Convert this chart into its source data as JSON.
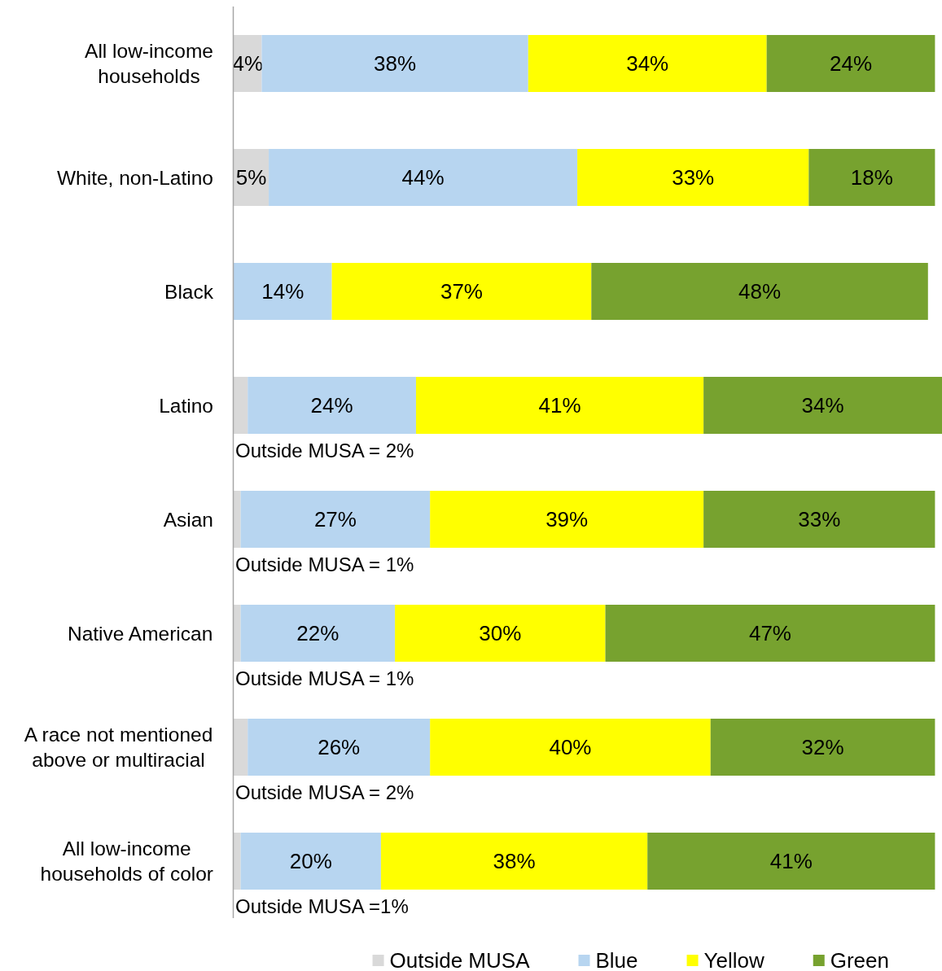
{
  "chart_data": {
    "type": "bar",
    "orientation": "horizontal",
    "stacked": true,
    "categories": [
      "All low-income households",
      "White, non-Latino",
      "Black",
      "Latino",
      "Asian",
      "Native American",
      "A race not mentioned above or multiracial",
      "All low-income households of color"
    ],
    "series": [
      {
        "name": "Outside MUSA",
        "color": "#d9d9d9",
        "values": [
          4,
          5,
          null,
          2,
          1,
          1,
          2,
          1
        ],
        "value_labels": [
          "4%",
          "5%",
          null,
          null,
          null,
          null,
          null,
          null
        ]
      },
      {
        "name": "Blue",
        "color": "#b7d5f0",
        "values": [
          38,
          44,
          14,
          24,
          27,
          22,
          26,
          20
        ],
        "value_labels": [
          "38%",
          "44%",
          "14%",
          "24%",
          "27%",
          "22%",
          "26%",
          "20%"
        ]
      },
      {
        "name": "Yellow",
        "color": "#ffff00",
        "values": [
          34,
          33,
          37,
          41,
          39,
          30,
          40,
          38
        ],
        "value_labels": [
          "34%",
          "33%",
          "37%",
          "41%",
          "39%",
          "30%",
          "40%",
          "38%"
        ]
      },
      {
        "name": "Green",
        "color": "#77a22f",
        "values": [
          24,
          18,
          48,
          34,
          33,
          47,
          32,
          41
        ],
        "value_labels": [
          "24%",
          "18%",
          "48%",
          "34%",
          "33%",
          "47%",
          "32%",
          "41%"
        ]
      }
    ],
    "annotations": [
      "Outside MUSA = 2%",
      "Outside MUSA = 1%",
      "Outside MUSA = 1%",
      "Outside MUSA = 2%",
      "Outside MUSA =1%"
    ],
    "legend": "bottom",
    "tick_labels": "y"
  }
}
